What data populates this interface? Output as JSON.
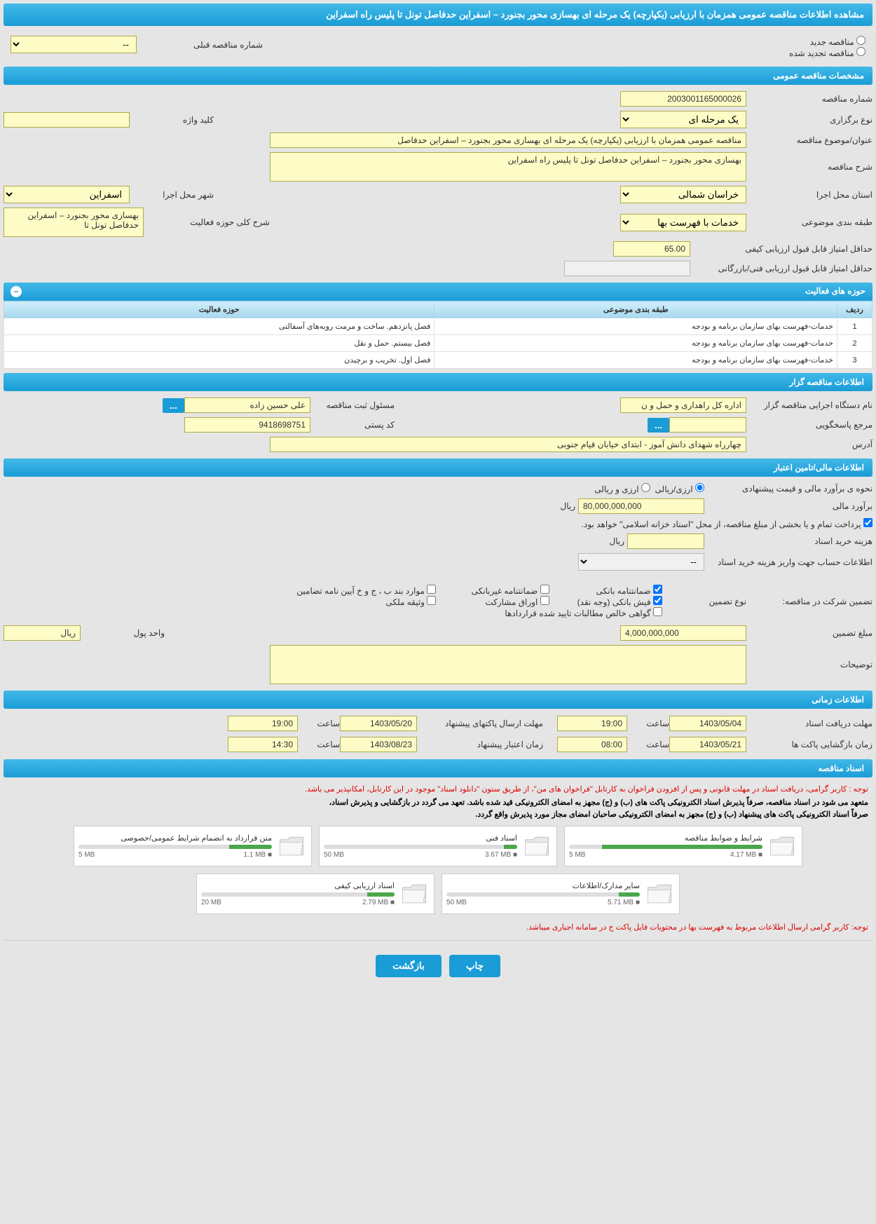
{
  "colors": {
    "header_bg": "#1a9cd6",
    "yellow_bg": "#fdfcc6",
    "yellow_border": "#b0aa4a",
    "page_bg": "#e5e5e5"
  },
  "header": {
    "title": "مشاهده اطلاعات مناقصه عمومی همزمان با ارزیابی (یکپارچه) یک مرحله ای بهسازی محور بجنورد – اسفراین حدفاصل تونل تا پلیس راه اسفراین"
  },
  "status": {
    "new_label": "مناقصه جدید",
    "renewed_label": "مناقصه تجدید شده",
    "prev_number_label": "شماره مناقصه قبلی",
    "prev_number_value": "--"
  },
  "sections": {
    "general": "مشخصات مناقصه عمومی",
    "organizer": "اطلاعات مناقصه گزار",
    "financial": "اطلاعات مالی/تامین اعتبار",
    "timing": "اطلاعات زمانی",
    "documents": "اسناد مناقصه"
  },
  "general": {
    "tender_no_label": "شماره مناقصه",
    "tender_no": "2003001165000026",
    "type_label": "نوع برگزاری",
    "type_value": "یک مرحله ای",
    "keyword_label": "کلید واژه",
    "keyword_value": "",
    "subject_label": "عنوان/موضوع مناقصه",
    "subject_value": "مناقصه عمومی همزمان با ارزیابی (یکپارچه) یک مرحله ای بهسازی محور بجنورد – اسفراین حدفاصل",
    "desc_label": "شرح مناقصه",
    "desc_value": "بهسازی محور بجنورد – اسفراین حدفاصل تونل تا پلیس راه اسفراین",
    "province_label": "استان محل اجرا",
    "province_value": "خراسان شمالی",
    "city_label": "شهر محل اجرا",
    "city_value": "اسفراین",
    "category_label": "طبقه بندی موضوعی",
    "category_value": "خدمات با فهرست بها",
    "activity_desc_label": "شرح کلی حوزه فعالیت",
    "activity_desc_value": "بهسازی محور بجنورد – اسفراین حدفاصل تونل تا",
    "min_qual_label": "حداقل امتیاز قابل قبول ارزیابی کیفی",
    "min_qual_value": "65.00",
    "min_tech_label": "حداقل امتیاز قابل قبول ارزیابی فنی/بازرگانی",
    "min_tech_value": ""
  },
  "activity_table": {
    "title": "حوزه های فعالیت",
    "col_row": "ردیف",
    "col_cat": "طبقه بندی موضوعی",
    "col_area": "حوزه فعالیت",
    "rows": [
      {
        "n": "1",
        "cat": "خدمات-فهرست بهای سازمان برنامه و بودجه",
        "area": "فصل پانزدهم. ساخت و مرمت رویه‌های آسفالتی"
      },
      {
        "n": "2",
        "cat": "خدمات-فهرست بهای سازمان برنامه و بودجه",
        "area": "فصل بیستم. حمل و نقل"
      },
      {
        "n": "3",
        "cat": "خدمات-فهرست بهای سازمان برنامه و بودجه",
        "area": "فصل اول. تخریب و برچیدن"
      }
    ]
  },
  "organizer": {
    "exec_label": "نام دستگاه اجرایی مناقصه گزار",
    "exec_value": "اداره کل راهداری و حمل و ن",
    "reg_resp_label": "مسئول ثبت مناقصه",
    "reg_resp_value": "علی حسین زاده",
    "dots": "...",
    "responder_label": "مرجع پاسخگویی",
    "responder_value": "",
    "postal_label": "کد پستی",
    "postal_value": "9418698751",
    "address_label": "آدرس",
    "address_value": "چهارراه شهدای دانش آموز - ابتدای خیابان قیام جنوبی"
  },
  "financial": {
    "method_label": "نحوه ی برآورد مالی و قیمت پیشنهادی",
    "opt_rial": "ارزی/ریالی",
    "opt_curr": "ارزی و ریالی",
    "estimate_label": "برآورد مالی",
    "estimate_value": "80,000,000,000",
    "unit_rial": "ریال",
    "treasury_note": "پرداخت تمام و یا بخشی از مبلغ مناقصه، از محل \"اسناد خزانه اسلامی\" خواهد بود.",
    "doc_cost_label": "هزینه خرید اسناد",
    "doc_cost_value": "",
    "account_label": "اطلاعات حساب جهت واریز هزینه خرید اسناد",
    "account_value": "--",
    "guarantee_label": "تضمین شرکت در مناقصه:",
    "guarantee_type_label": "نوع تضمین",
    "chk_bank": "ضمانتنامه بانکی",
    "chk_nonbank": "ضمانتنامه غیربانکی",
    "chk_bvj": "موارد بند ب ، ج و خ آیین نامه تضامین",
    "chk_cash": "فیش بانکی (وجه نقد)",
    "chk_share": "اوراق مشارکت",
    "chk_deed": "وثیقه ملکی",
    "chk_claims": "گواهی خالص مطالبات تایید شده قراردادها",
    "guarantee_amount_label": "مبلغ تضمین",
    "guarantee_amount_value": "4,000,000,000",
    "currency_unit_label": "واحد پول",
    "currency_unit_value": "ریال",
    "notes_label": "توضیحات",
    "notes_value": ""
  },
  "timing": {
    "receive_deadline_label": "مهلت دریافت اسناد",
    "receive_date": "1403/05/04",
    "receive_time": "19:00",
    "open_label": "زمان بازگشایی پاکت ها",
    "open_date": "1403/05/21",
    "open_time": "08:00",
    "submit_label": "مهلت ارسال پاکتهای پیشنهاد",
    "submit_date": "1403/05/20",
    "submit_time": "19:00",
    "validity_label": "زمان اعتبار پیشنهاد",
    "validity_date": "1403/08/23",
    "validity_time": "14:30",
    "time_label": "ساعت"
  },
  "docs": {
    "note1": "توجه : کاربر گرامی، دریافت اسناد در مهلت قانونی و پس از افزودن فراخوان به کارتابل \"فراخوان های من\"، از طریق ستون \"دانلود اسناد\" موجود در این کارتابل، امکانپذیر می باشد.",
    "note2": "متعهد می شود در اسناد مناقصه، صرفاً پذیرش اسناد الکترونیکی پاکت های (ب) و (ج) مجهز به امضای الکترونیکی قید شده باشد. تعهد می گردد در بازگشایی و پذیرش اسناد،",
    "note3": "صرفاً اسناد الکترونیکی پاکت های پیشنهاد (ب) و (ج) مجهز به امضای الکترونیکی صاحبان امضای مجاز مورد پذیرش واقع گردد.",
    "files": [
      {
        "title": "شرایط و ضوابط مناقصه",
        "used": "4.17 MB",
        "cap": "5 MB",
        "pct": 83
      },
      {
        "title": "اسناد فنی",
        "used": "3.67 MB",
        "cap": "50 MB",
        "pct": 7
      },
      {
        "title": "متن قرارداد به انضمام شرایط عمومی/خصوصی",
        "used": "1.1 MB",
        "cap": "5 MB",
        "pct": 22
      },
      {
        "title": "سایر مدارک/اطلاعات",
        "used": "5.71 MB",
        "cap": "50 MB",
        "pct": 11
      },
      {
        "title": "اسناد ارزیابی کیفی",
        "used": "2.79 MB",
        "cap": "20 MB",
        "pct": 14
      }
    ],
    "footer_note": "توجه: کاربر گرامی ارسال اطلاعات مربوط به فهرست بها در محتویات فایل پاکت ج در سامانه اجباری میباشد."
  },
  "buttons": {
    "print": "چاپ",
    "back": "بازگشت"
  }
}
